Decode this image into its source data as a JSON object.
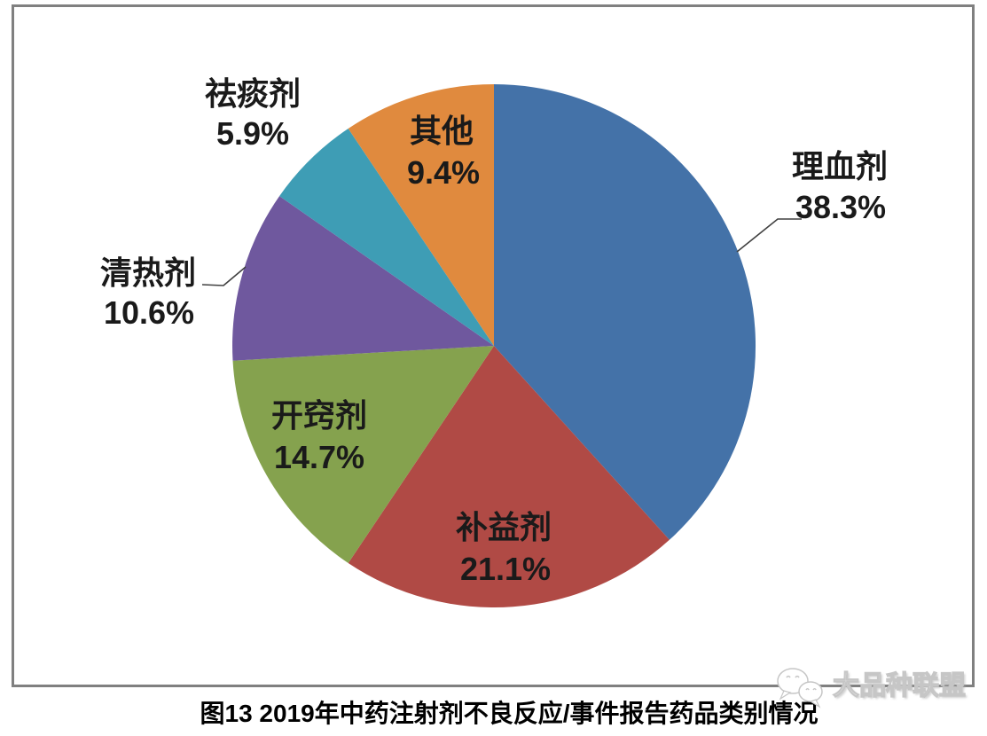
{
  "caption": {
    "text": "图13 2019年中药注射剂不良反应/事件报告药品类别情况"
  },
  "watermark": {
    "text": "大品种联盟",
    "icon": "wechat-icon"
  },
  "colors": {
    "frame_border": "#808080",
    "leader_line": "#404040",
    "label_text": "#1a1a1a"
  },
  "chart_data": {
    "type": "pie",
    "title": "图13 2019年中药注射剂不良反应/事件报告药品类别情况",
    "start_angle_deg": 0,
    "direction": "clockwise",
    "legend": "none",
    "slices": [
      {
        "label": "理血剂",
        "value": 38.3,
        "pct_label": "38.3%",
        "color": "#4472A8",
        "label_position": "outside-with-leader"
      },
      {
        "label": "补益剂",
        "value": 21.1,
        "pct_label": "21.1%",
        "color": "#B04A45",
        "label_position": "inside"
      },
      {
        "label": "开窍剂",
        "value": 14.7,
        "pct_label": "14.7%",
        "color": "#85A24E",
        "label_position": "inside"
      },
      {
        "label": "清热剂",
        "value": 10.6,
        "pct_label": "10.6%",
        "color": "#6F589E",
        "label_position": "outside-with-leader"
      },
      {
        "label": "祛痰剂",
        "value": 5.9,
        "pct_label": "5.9%",
        "color": "#3E9DB5",
        "label_position": "outside"
      },
      {
        "label": "其他",
        "value": 9.4,
        "pct_label": "9.4%",
        "color": "#E08A3E",
        "label_position": "inside"
      }
    ]
  }
}
